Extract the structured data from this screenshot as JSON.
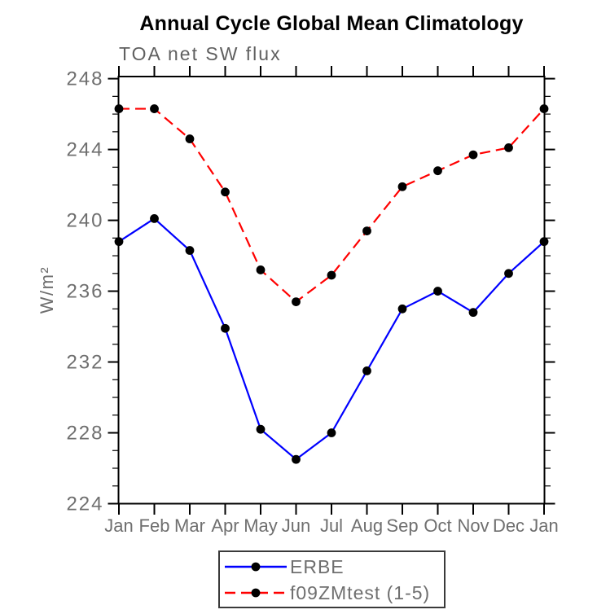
{
  "title": "Annual Cycle Global Mean Climatology",
  "chart_data": {
    "type": "line",
    "title": "Annual Cycle Global Mean Climatology",
    "subtitle": "TOA net SW flux",
    "ylabel": "W/m²",
    "xlabel": "",
    "categories": [
      "Jan",
      "Feb",
      "Mar",
      "Apr",
      "May",
      "Jun",
      "Jul",
      "Aug",
      "Sep",
      "Oct",
      "Nov",
      "Dec",
      "Jan"
    ],
    "yticks": [
      224,
      228,
      232,
      236,
      240,
      244,
      248
    ],
    "ylim": [
      224,
      248.2
    ],
    "minor_tick_step": 1,
    "grid": false,
    "legend_position": "bottom-center",
    "axis_color": "#000000",
    "tick_label_color": "#6f6f6f",
    "marker_color": "#000000",
    "series": [
      {
        "name": "ERBE",
        "color": "#0000ff",
        "line_style": "solid",
        "marker": "filled-circle",
        "values": [
          238.8,
          240.1,
          238.3,
          233.9,
          228.2,
          226.5,
          228.0,
          231.5,
          235.0,
          236.0,
          234.8,
          237.0,
          238.8
        ]
      },
      {
        "name": "f09ZMtest (1-5)",
        "color": "#ff0000",
        "line_style": "dashed",
        "marker": "filled-circle",
        "values": [
          246.3,
          246.3,
          244.6,
          241.6,
          237.2,
          235.4,
          236.9,
          239.4,
          241.9,
          242.8,
          243.7,
          244.1,
          246.3
        ]
      }
    ]
  }
}
